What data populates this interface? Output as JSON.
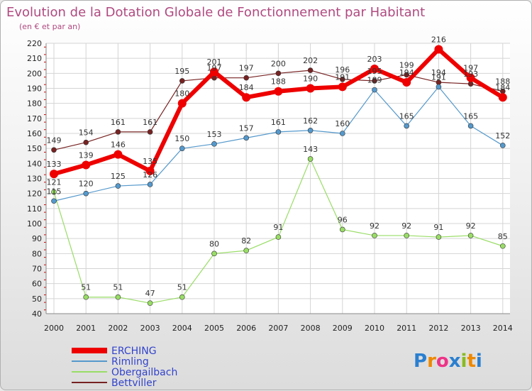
{
  "chart_data": {
    "type": "line",
    "title": "Evolution de la Dotation Globale de Fonctionnement par Habitant",
    "subtitle": "(en € et par an)",
    "x": [
      "2000",
      "2001",
      "2002",
      "2003",
      "2004",
      "2005",
      "2006",
      "2007",
      "2008",
      "2009",
      "2010",
      "2011",
      "2012",
      "2013",
      "2014"
    ],
    "ylim": [
      40,
      220
    ],
    "yticks": [
      40,
      50,
      60,
      70,
      80,
      90,
      100,
      110,
      120,
      130,
      140,
      150,
      160,
      170,
      180,
      190,
      200,
      210,
      220
    ],
    "grid": true,
    "legend_position": "bottom-left",
    "series": [
      {
        "name": "ERCHING",
        "color": "#ee0000",
        "values": [
          133,
          139,
          146,
          135,
          180,
          201,
          184,
          188,
          190,
          191,
          203,
          194,
          216,
          197,
          184
        ],
        "labels": [
          "133",
          "139",
          "146",
          "135",
          "180",
          "201",
          "184",
          "188",
          "190",
          "191",
          "203",
          "194",
          "216",
          "197",
          "184"
        ]
      },
      {
        "name": "Rimling",
        "color": "#5599cc",
        "values": [
          115,
          120,
          125,
          126,
          150,
          153,
          157,
          161,
          162,
          160,
          189,
          165,
          191,
          165,
          152
        ],
        "labels": [
          "115",
          "120",
          "125",
          "126",
          "150",
          "153",
          "157",
          "161",
          "162",
          "160",
          "189",
          "165",
          "191",
          "165",
          "152"
        ]
      },
      {
        "name": "Obergailbach",
        "color": "#99dd66",
        "values": [
          121,
          51,
          51,
          47,
          51,
          80,
          82,
          91,
          143,
          96,
          92,
          92,
          91,
          92,
          85
        ],
        "labels": [
          "121",
          "51",
          "51",
          "47",
          "51",
          "80",
          "82",
          "91",
          "143",
          "96",
          "92",
          "92",
          "91",
          "92",
          "85"
        ]
      },
      {
        "name": "Bettviller",
        "color": "#772222",
        "values": [
          149,
          154,
          161,
          161,
          195,
          197,
          197,
          200,
          202,
          196,
          195,
          199,
          194,
          193,
          188
        ],
        "labels": [
          "149",
          "154",
          "161",
          "161",
          "195",
          "197",
          "197",
          "200",
          "202",
          "196",
          "195",
          "199",
          "194",
          "193",
          "188"
        ]
      }
    ]
  },
  "brand": {
    "text": "Proxiti",
    "letters": [
      "P",
      "r",
      "o",
      "x",
      "i",
      "t",
      "i"
    ],
    "colors": [
      "#2a7fd0",
      "#ee8800",
      "#ee3388",
      "#2a7fd0",
      "#88bb22",
      "#ee8800",
      "#2a7fd0"
    ]
  }
}
